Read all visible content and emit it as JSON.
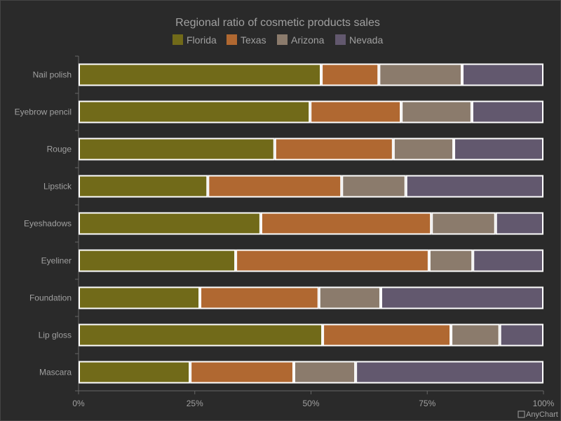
{
  "chart_data": {
    "type": "bar",
    "orientation": "horizontal",
    "stacking": "percent",
    "title": "Regional ratio of cosmetic products sales",
    "categories": [
      "Nail polish",
      "Eyebrow pencil",
      "Rouge",
      "Lipstick",
      "Eyeshadows",
      "Eyeliner",
      "Foundation",
      "Lip gloss",
      "Mascara"
    ],
    "series": [
      {
        "name": "Florida",
        "color": "#716a19",
        "values": [
          52.2,
          49.8,
          42.2,
          27.8,
          39.2,
          33.8,
          26.1,
          52.5,
          24.0
        ]
      },
      {
        "name": "Texas",
        "color": "#b06831",
        "values": [
          12.4,
          19.6,
          25.5,
          28.8,
          36.7,
          41.6,
          25.6,
          27.6,
          22.3
        ]
      },
      {
        "name": "Arizona",
        "color": "#8b7b6c",
        "values": [
          17.9,
          15.2,
          13.0,
          13.8,
          13.8,
          9.4,
          13.3,
          10.5,
          13.3
        ]
      },
      {
        "name": "Nevada",
        "color": "#62586e",
        "values": [
          17.5,
          15.4,
          19.3,
          29.6,
          10.3,
          15.2,
          35.0,
          9.4,
          40.4
        ]
      }
    ],
    "xlim": [
      0,
      100
    ],
    "x_ticks": [
      "0%",
      "25%",
      "50%",
      "75%",
      "100%"
    ],
    "legend": "top",
    "grid": false
  },
  "credit": "AnyChart"
}
